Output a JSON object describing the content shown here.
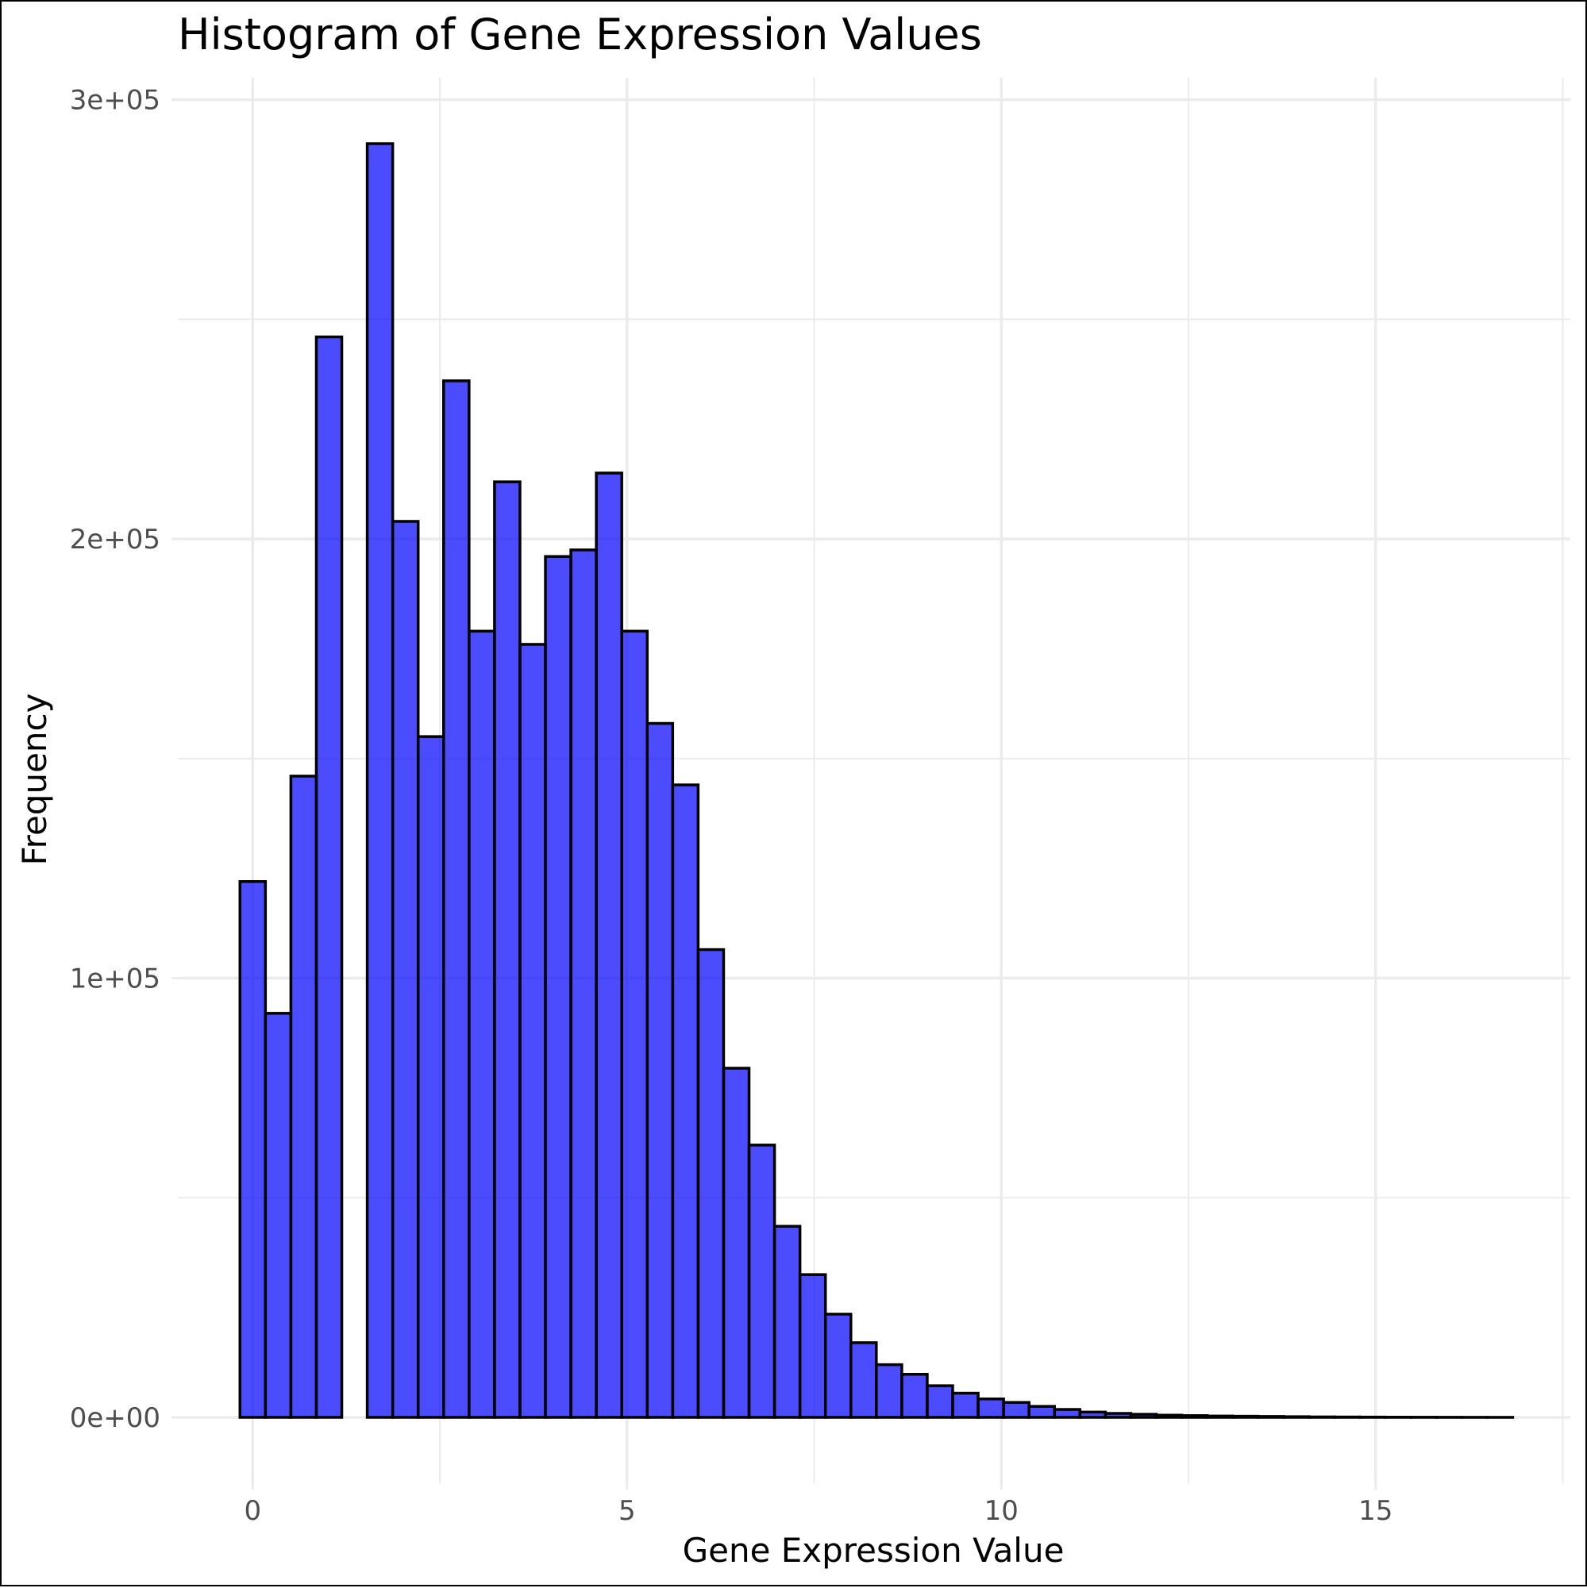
{
  "chart_data": {
    "type": "bar",
    "title": "Histogram of Gene Expression Values",
    "xlabel": "Gene Expression Value",
    "ylabel": "Frequency",
    "xlim": [
      -1.0,
      17.6
    ],
    "ylim": [
      -15000,
      305000
    ],
    "x_ticks": [
      0,
      5,
      10,
      15
    ],
    "x_tick_labels": [
      "0",
      "5",
      "10",
      "15"
    ],
    "x_minor_ticks": [
      2.5,
      7.5,
      12.5,
      17.5
    ],
    "y_ticks": [
      0,
      100000,
      200000,
      300000
    ],
    "y_tick_labels": [
      "0e+00",
      "1e+05",
      "2e+05",
      "3e+05"
    ],
    "y_minor_ticks": [
      50000,
      150000,
      250000
    ],
    "grid": true,
    "bar_fill": "#0000FF",
    "bar_fill_opacity": 0.7,
    "bar_edge": "#000000",
    "bin_width": 0.34,
    "bin_centers": [
      0,
      0.34,
      0.68,
      1.02,
      1.36,
      1.7,
      2.04,
      2.38,
      2.72,
      3.06,
      3.4,
      3.74,
      4.08,
      4.42,
      4.76,
      5.1,
      5.44,
      5.78,
      6.12,
      6.46,
      6.8,
      7.14,
      7.48,
      7.82,
      8.16,
      8.5,
      8.84,
      9.18,
      9.52,
      9.86,
      10.2,
      10.54,
      10.88,
      11.22,
      11.56,
      11.9,
      12.24,
      12.58,
      12.92,
      13.26,
      13.6,
      13.94,
      14.28,
      14.62,
      14.96,
      15.3,
      15.64,
      15.98,
      16.32,
      16.66
    ],
    "values": [
      122000,
      92000,
      146000,
      246000,
      0,
      290000,
      204000,
      155000,
      236000,
      179000,
      213000,
      176000,
      196000,
      197500,
      215000,
      179000,
      158000,
      144000,
      106500,
      79500,
      62000,
      43500,
      32500,
      23500,
      17000,
      12000,
      9800,
      7200,
      5500,
      4200,
      3400,
      2500,
      1800,
      1200,
      900,
      700,
      500,
      400,
      300,
      250,
      200,
      150,
      100,
      80,
      60,
      40,
      30,
      20,
      10,
      5
    ]
  }
}
